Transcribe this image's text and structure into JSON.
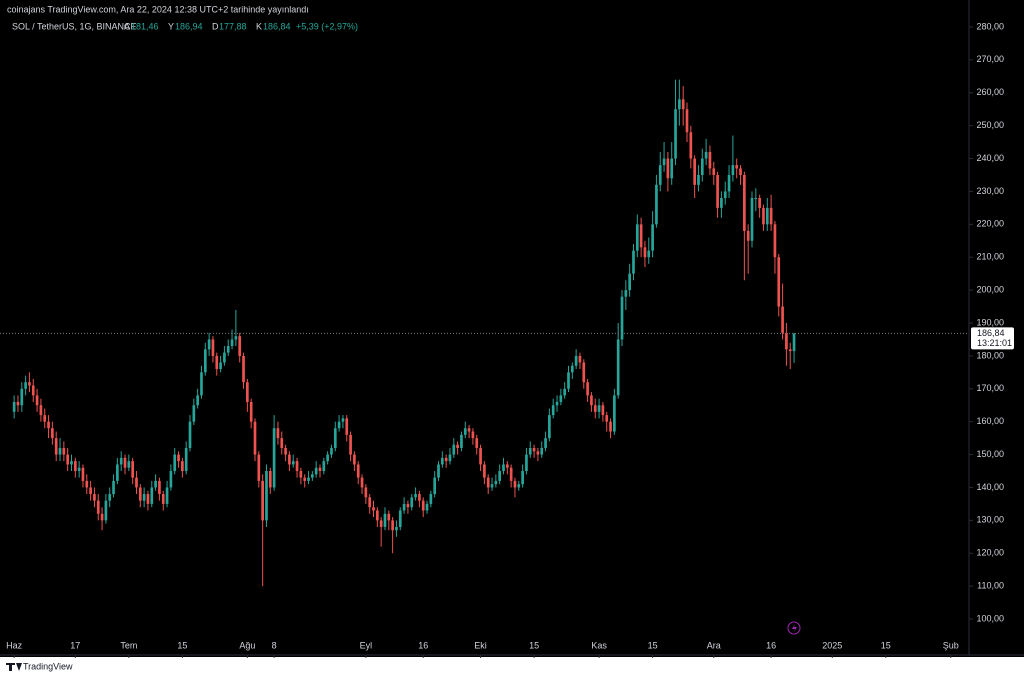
{
  "header": "coinajans TradingView.com, Ara 22, 2024 12:38 UTC+2 tarihinde yayınlandı",
  "footer": "TradingView",
  "chart_data": {
    "type": "candlestick",
    "symbol": "SOL / TetherUS, 1G, BINANCE",
    "ohlc_legend": [
      {
        "key": "A",
        "value": "181,46"
      },
      {
        "key": "Y",
        "value": "186,94"
      },
      {
        "key": "D",
        "value": "177,88"
      },
      {
        "key": "K",
        "value": "186,84"
      }
    ],
    "change": "+5,39 (+2,97%)",
    "up_color": "#26a69a",
    "down_color": "#ef5350",
    "last_price": {
      "value": 186.84,
      "label": "186,84"
    },
    "countdown": "13:21:01",
    "xlim": [
      -3.7,
      249.5
    ],
    "xticks": [
      {
        "value": 0,
        "label": "Haz"
      },
      {
        "value": 16,
        "label": "17"
      },
      {
        "value": 30,
        "label": "Tem"
      },
      {
        "value": 44,
        "label": "15"
      },
      {
        "value": 61,
        "label": "Ağu"
      },
      {
        "value": 68,
        "label": "8"
      },
      {
        "value": 92,
        "label": "Eyl"
      },
      {
        "value": 107,
        "label": "16"
      },
      {
        "value": 122,
        "label": "Eki"
      },
      {
        "value": 136,
        "label": "15"
      },
      {
        "value": 153,
        "label": "Kas"
      },
      {
        "value": 167,
        "label": "15"
      },
      {
        "value": 183,
        "label": "Ara"
      },
      {
        "value": 198,
        "label": "16"
      },
      {
        "value": 214,
        "label": "2025"
      },
      {
        "value": 228,
        "label": "15"
      },
      {
        "value": 245,
        "label": "Şub"
      }
    ],
    "ylim": [
      96,
      282
    ],
    "yticks": [
      {
        "value": 100,
        "label": "100,00"
      },
      {
        "value": 110,
        "label": "110,00"
      },
      {
        "value": 120,
        "label": "120,00"
      },
      {
        "value": 130,
        "label": "130,00"
      },
      {
        "value": 140,
        "label": "140,00"
      },
      {
        "value": 150,
        "label": "150,00"
      },
      {
        "value": 160,
        "label": "160,00"
      },
      {
        "value": 170,
        "label": "170,00"
      },
      {
        "value": 180,
        "label": "180,00"
      },
      {
        "value": 190,
        "label": "190,00"
      },
      {
        "value": 200,
        "label": "200,00"
      },
      {
        "value": 210,
        "label": "210,00"
      },
      {
        "value": 220,
        "label": "220,00"
      },
      {
        "value": 230,
        "label": "230,00"
      },
      {
        "value": 240,
        "label": "240,00"
      },
      {
        "value": 250,
        "label": "250,00"
      },
      {
        "value": 260,
        "label": "260,00"
      },
      {
        "value": 270,
        "label": "270,00"
      },
      {
        "value": 280,
        "label": "280,00"
      }
    ],
    "ohlc": [
      [
        163,
        168,
        161,
        166
      ],
      [
        166,
        168,
        163,
        165
      ],
      [
        165,
        172,
        163,
        170
      ],
      [
        170,
        174,
        168,
        172
      ],
      [
        172,
        175,
        169,
        171
      ],
      [
        171,
        173,
        166,
        168
      ],
      [
        168,
        170,
        163,
        165
      ],
      [
        165,
        167,
        160,
        162
      ],
      [
        162,
        164,
        158,
        160
      ],
      [
        160,
        162,
        155,
        158
      ],
      [
        158,
        160,
        153,
        155
      ],
      [
        155,
        157,
        148,
        150
      ],
      [
        150,
        155,
        148,
        152
      ],
      [
        152,
        154,
        148,
        150
      ],
      [
        150,
        152,
        145,
        147
      ],
      [
        147,
        150,
        145,
        148
      ],
      [
        148,
        149,
        143,
        145
      ],
      [
        145,
        148,
        143,
        146
      ],
      [
        146,
        147,
        140,
        142
      ],
      [
        142,
        144,
        138,
        140
      ],
      [
        140,
        142,
        136,
        138
      ],
      [
        138,
        140,
        134,
        136
      ],
      [
        136,
        138,
        130,
        132
      ],
      [
        132,
        134,
        127,
        130
      ],
      [
        130,
        138,
        129,
        136
      ],
      [
        136,
        140,
        134,
        138
      ],
      [
        138,
        144,
        137,
        142
      ],
      [
        142,
        149,
        141,
        147
      ],
      [
        147,
        151,
        145,
        149
      ],
      [
        149,
        150,
        144,
        146
      ],
      [
        146,
        150,
        145,
        148
      ],
      [
        148,
        149,
        141,
        143
      ],
      [
        143,
        145,
        138,
        140
      ],
      [
        140,
        141,
        134,
        136
      ],
      [
        136,
        140,
        134,
        138
      ],
      [
        138,
        139,
        133,
        135
      ],
      [
        135,
        142,
        134,
        140
      ],
      [
        140,
        144,
        139,
        142
      ],
      [
        142,
        143,
        136,
        138
      ],
      [
        138,
        139,
        133,
        135
      ],
      [
        135,
        142,
        134,
        140
      ],
      [
        140,
        147,
        139,
        145
      ],
      [
        145,
        152,
        144,
        150
      ],
      [
        150,
        151,
        146,
        148
      ],
      [
        148,
        149,
        143,
        145
      ],
      [
        145,
        154,
        144,
        152
      ],
      [
        152,
        162,
        151,
        160
      ],
      [
        160,
        167,
        159,
        165
      ],
      [
        165,
        170,
        164,
        168
      ],
      [
        168,
        177,
        167,
        175
      ],
      [
        175,
        184,
        174,
        182
      ],
      [
        182,
        187,
        180,
        185
      ],
      [
        185,
        186,
        178,
        180
      ],
      [
        180,
        181,
        174,
        176
      ],
      [
        176,
        180,
        175,
        178
      ],
      [
        178,
        183,
        177,
        181
      ],
      [
        181,
        185,
        180,
        183
      ],
      [
        183,
        188,
        182,
        185
      ],
      [
        185,
        194,
        183,
        186
      ],
      [
        186,
        187,
        178,
        180
      ],
      [
        180,
        181,
        170,
        172
      ],
      [
        172,
        173,
        163,
        166
      ],
      [
        166,
        167,
        158,
        160
      ],
      [
        160,
        161,
        148,
        150
      ],
      [
        150,
        151,
        140,
        142
      ],
      [
        142,
        144,
        110,
        130
      ],
      [
        130,
        147,
        128,
        145
      ],
      [
        145,
        146,
        138,
        140
      ],
      [
        140,
        162,
        139,
        158
      ],
      [
        158,
        160,
        153,
        155
      ],
      [
        155,
        157,
        150,
        152
      ],
      [
        152,
        153,
        148,
        150
      ],
      [
        150,
        151,
        145,
        147
      ],
      [
        147,
        150,
        146,
        148
      ],
      [
        148,
        149,
        143,
        145
      ],
      [
        145,
        146,
        141,
        143
      ],
      [
        143,
        144,
        140,
        142
      ],
      [
        142,
        145,
        141,
        143
      ],
      [
        143,
        145,
        142,
        144
      ],
      [
        144,
        148,
        143,
        146
      ],
      [
        146,
        147,
        143,
        145
      ],
      [
        145,
        149,
        144,
        148
      ],
      [
        148,
        151,
        147,
        150
      ],
      [
        150,
        153,
        149,
        152
      ],
      [
        152,
        160,
        151,
        158
      ],
      [
        158,
        162,
        157,
        160
      ],
      [
        160,
        162,
        158,
        161
      ],
      [
        161,
        162,
        154,
        156
      ],
      [
        156,
        157,
        148,
        150
      ],
      [
        150,
        151,
        145,
        147
      ],
      [
        147,
        148,
        141,
        143
      ],
      [
        143,
        144,
        138,
        140
      ],
      [
        140,
        141,
        135,
        137
      ],
      [
        137,
        138,
        132,
        134
      ],
      [
        134,
        136,
        131,
        133
      ],
      [
        133,
        134,
        128,
        130
      ],
      [
        130,
        131,
        122,
        128
      ],
      [
        128,
        134,
        127,
        132
      ],
      [
        132,
        133,
        127,
        130
      ],
      [
        130,
        131,
        120,
        127
      ],
      [
        127,
        130,
        125,
        128
      ],
      [
        128,
        134,
        127,
        133
      ],
      [
        133,
        137,
        132,
        135
      ],
      [
        135,
        136,
        132,
        134
      ],
      [
        134,
        138,
        133,
        137
      ],
      [
        137,
        140,
        136,
        138
      ],
      [
        138,
        139,
        134,
        136
      ],
      [
        136,
        137,
        131,
        133
      ],
      [
        133,
        136,
        132,
        135
      ],
      [
        135,
        139,
        134,
        138
      ],
      [
        138,
        145,
        137,
        143
      ],
      [
        143,
        148,
        142,
        147
      ],
      [
        147,
        151,
        146,
        149
      ],
      [
        149,
        150,
        146,
        148
      ],
      [
        148,
        152,
        147,
        150
      ],
      [
        150,
        155,
        149,
        153
      ],
      [
        153,
        154,
        150,
        152
      ],
      [
        152,
        157,
        151,
        156
      ],
      [
        156,
        160,
        155,
        158
      ],
      [
        158,
        159,
        155,
        157
      ],
      [
        157,
        158,
        153,
        155
      ],
      [
        155,
        156,
        150,
        152
      ],
      [
        152,
        153,
        145,
        147
      ],
      [
        147,
        148,
        141,
        143
      ],
      [
        143,
        144,
        138,
        140
      ],
      [
        140,
        143,
        139,
        141
      ],
      [
        141,
        144,
        140,
        142
      ],
      [
        142,
        147,
        141,
        145
      ],
      [
        145,
        149,
        144,
        147
      ],
      [
        147,
        148,
        144,
        146
      ],
      [
        146,
        147,
        140,
        142
      ],
      [
        142,
        143,
        137,
        140
      ],
      [
        140,
        142,
        139,
        141
      ],
      [
        141,
        147,
        140,
        145
      ],
      [
        145,
        152,
        144,
        150
      ],
      [
        150,
        154,
        149,
        152
      ],
      [
        152,
        153,
        149,
        151
      ],
      [
        151,
        152,
        148,
        150
      ],
      [
        150,
        154,
        149,
        152
      ],
      [
        152,
        157,
        151,
        155
      ],
      [
        155,
        164,
        154,
        162
      ],
      [
        162,
        167,
        161,
        165
      ],
      [
        165,
        168,
        163,
        166
      ],
      [
        166,
        170,
        165,
        168
      ],
      [
        168,
        172,
        167,
        170
      ],
      [
        170,
        177,
        169,
        175
      ],
      [
        175,
        178,
        173,
        177
      ],
      [
        177,
        182,
        176,
        180
      ],
      [
        180,
        181,
        176,
        178
      ],
      [
        178,
        179,
        170,
        172
      ],
      [
        172,
        173,
        166,
        168
      ],
      [
        168,
        169,
        163,
        165
      ],
      [
        165,
        167,
        161,
        163
      ],
      [
        163,
        167,
        161,
        165
      ],
      [
        165,
        166,
        160,
        162
      ],
      [
        162,
        163,
        157,
        160
      ],
      [
        160,
        161,
        155,
        157
      ],
      [
        157,
        170,
        156,
        168
      ],
      [
        168,
        190,
        167,
        185
      ],
      [
        185,
        200,
        183,
        198
      ],
      [
        198,
        203,
        194,
        200
      ],
      [
        200,
        208,
        198,
        205
      ],
      [
        205,
        214,
        203,
        212
      ],
      [
        212,
        223,
        210,
        220
      ],
      [
        220,
        222,
        210,
        213
      ],
      [
        213,
        215,
        207,
        210
      ],
      [
        210,
        216,
        208,
        212
      ],
      [
        212,
        224,
        210,
        220
      ],
      [
        220,
        235,
        219,
        232
      ],
      [
        232,
        242,
        230,
        238
      ],
      [
        238,
        245,
        236,
        240
      ],
      [
        240,
        242,
        230,
        234
      ],
      [
        234,
        245,
        232,
        240
      ],
      [
        240,
        264,
        238,
        255
      ],
      [
        255,
        264,
        250,
        258
      ],
      [
        258,
        262,
        250,
        255
      ],
      [
        255,
        257,
        245,
        248
      ],
      [
        248,
        250,
        237,
        240
      ],
      [
        240,
        241,
        228,
        232
      ],
      [
        232,
        238,
        230,
        235
      ],
      [
        235,
        243,
        233,
        240
      ],
      [
        240,
        246,
        238,
        242
      ],
      [
        242,
        244,
        235,
        237
      ],
      [
        237,
        239,
        232,
        235
      ],
      [
        235,
        236,
        222,
        225
      ],
      [
        225,
        230,
        222,
        228
      ],
      [
        228,
        233,
        226,
        230
      ],
      [
        230,
        238,
        228,
        235
      ],
      [
        235,
        247,
        233,
        238
      ],
      [
        238,
        240,
        234,
        237
      ],
      [
        237,
        238,
        232,
        235
      ],
      [
        235,
        236,
        203,
        218
      ],
      [
        218,
        220,
        205,
        215
      ],
      [
        215,
        230,
        213,
        228
      ],
      [
        228,
        231,
        224,
        228
      ],
      [
        228,
        229,
        222,
        225
      ],
      [
        225,
        226,
        218,
        220
      ],
      [
        220,
        228,
        218,
        225
      ],
      [
        225,
        229,
        218,
        220
      ],
      [
        220,
        221,
        205,
        210
      ],
      [
        210,
        211,
        192,
        195
      ],
      [
        195,
        202,
        185,
        187
      ],
      [
        187,
        190,
        177,
        182
      ],
      [
        182,
        184,
        176,
        181.46
      ],
      [
        181.46,
        186.94,
        177.88,
        186.84
      ]
    ]
  }
}
